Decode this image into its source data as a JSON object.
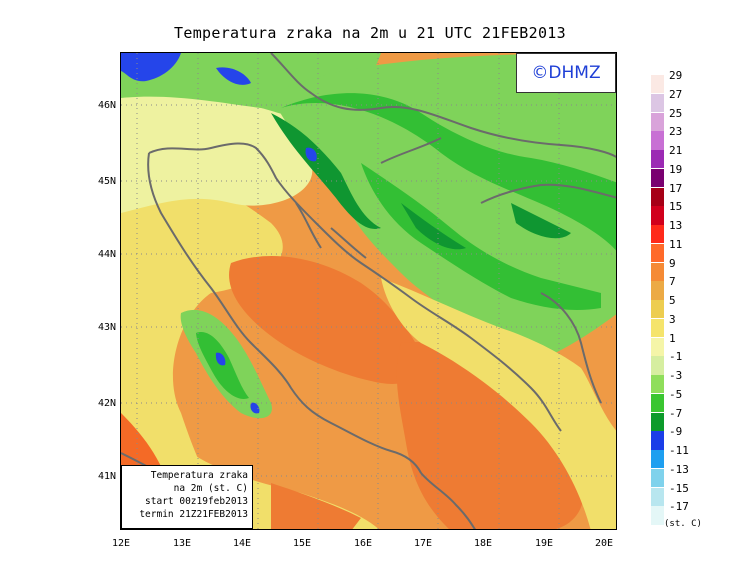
{
  "title": "Temperatura zraka na 2m u 21 UTC 21FEB2013",
  "logo": "©DHMZ",
  "info": {
    "line1": "Temperatura zraka",
    "line2": "na 2m (st. C)",
    "line3": "start 00z19feb2013",
    "line4": "termin 21Z21FEB2013"
  },
  "lat_labels": [
    "46N",
    "45N",
    "44N",
    "43N",
    "42N",
    "41N"
  ],
  "lon_labels": [
    "12E",
    "13E",
    "14E",
    "15E",
    "16E",
    "17E",
    "18E",
    "19E",
    "20E"
  ],
  "legend": {
    "labels": [
      "29",
      "27",
      "25",
      "23",
      "21",
      "19",
      "17",
      "15",
      "13",
      "11",
      "9",
      "7",
      "5",
      "3",
      "1",
      "-1",
      "-3",
      "-5",
      "-7",
      "-9",
      "-11",
      "-13",
      "-15",
      "-17"
    ],
    "colors": [
      "#fbe9e4",
      "#dcc6e4",
      "#d9a3da",
      "#c870d4",
      "#9c2ab4",
      "#7a0070",
      "#a60016",
      "#d1001c",
      "#ff2a1a",
      "#ff6a2a",
      "#f58a35",
      "#ecaa45",
      "#edcd50",
      "#f5e46c",
      "#f5f5a8",
      "#d6eea0",
      "#8fde5b",
      "#3ac631",
      "#0d9b2b",
      "#1b3ee8",
      "#1e9ff0",
      "#7fd2ec",
      "#b8e6ef",
      "#e4f7f7"
    ],
    "unit": "(st. C)"
  },
  "map_colors": {
    "sea_warm": "#ef9a45",
    "sea_hot": "#ee7b33",
    "coast_yellow": "#f1df6a",
    "pale": "#eef2a0",
    "land_light": "#7fd35a",
    "land_mid": "#33bf34",
    "land_dark": "#0f9631",
    "cold_blue": "#2545ea",
    "south_red": "#f46a26",
    "coastline": "#6b6b6b",
    "grid": "#8a8a8a"
  }
}
